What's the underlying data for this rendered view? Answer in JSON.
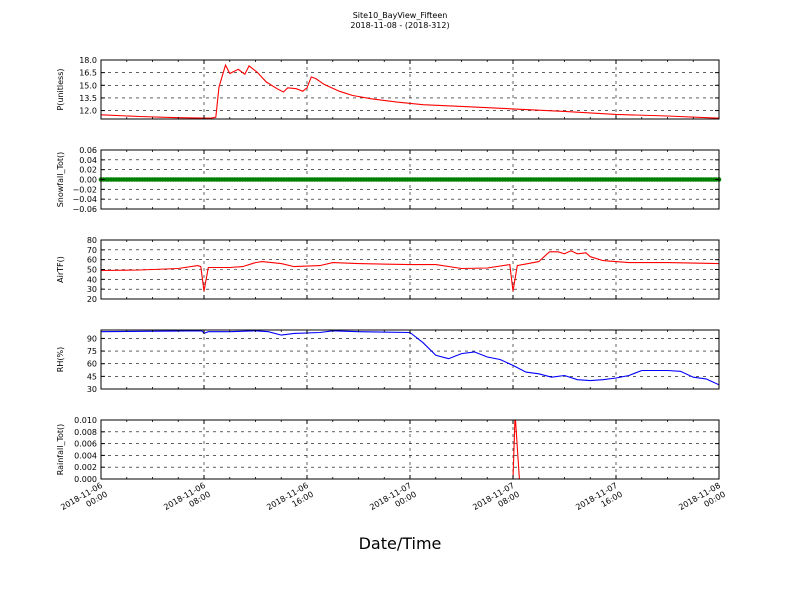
{
  "figure": {
    "title_line1": "Site10_BayView_Fifteen",
    "title_line2": "2018-11-08 - (2018-312)",
    "xlabel": "Date/Time"
  },
  "chart_data": {
    "type": "line",
    "x_range": [
      "2018-11-06 00:00",
      "2018-11-08 00:00"
    ],
    "x_ticks": [
      {
        "value": "2018-11-06 00:00",
        "line1": "2018-11-06",
        "line2": "00:00"
      },
      {
        "value": "2018-11-06 08:00",
        "line1": "2018-11-06",
        "line2": "08:00"
      },
      {
        "value": "2018-11-06 16:00",
        "line1": "2018-11-06",
        "line2": "16:00"
      },
      {
        "value": "2018-11-07 00:00",
        "line1": "2018-11-07",
        "line2": "00:00"
      },
      {
        "value": "2018-11-07 08:00",
        "line1": "2018-11-07",
        "line2": "08:00"
      },
      {
        "value": "2018-11-07 16:00",
        "line1": "2018-11-07",
        "line2": "16:00"
      },
      {
        "value": "2018-11-08 00:00",
        "line1": "2018-11-08",
        "line2": "00:00"
      }
    ],
    "grid": true,
    "panels": [
      {
        "ylabel": "P(unitless)",
        "color": "#ff0000",
        "ylim": [
          11.0,
          18.0
        ],
        "yticks": [
          12.0,
          13.5,
          15.0,
          16.5,
          18.0
        ],
        "ytick_labels": [
          "12.0",
          "13.5",
          "15.0",
          "16.5",
          "18.0"
        ],
        "points": [
          [
            "2018-11-06 00:00",
            11.5
          ],
          [
            "2018-11-06 03:00",
            11.3
          ],
          [
            "2018-11-06 06:00",
            11.15
          ],
          [
            "2018-11-06 08:30",
            11.1
          ],
          [
            "2018-11-06 08:55",
            11.2
          ],
          [
            "2018-11-06 09:10",
            14.8
          ],
          [
            "2018-11-06 09:40",
            17.4
          ],
          [
            "2018-11-06 10:00",
            16.4
          ],
          [
            "2018-11-06 10:40",
            16.9
          ],
          [
            "2018-11-06 11:10",
            16.3
          ],
          [
            "2018-11-06 11:30",
            17.3
          ],
          [
            "2018-11-06 12:10",
            16.5
          ],
          [
            "2018-11-06 12:50",
            15.4
          ],
          [
            "2018-11-06 13:40",
            14.6
          ],
          [
            "2018-11-06 14:10",
            14.2
          ],
          [
            "2018-11-06 14:30",
            14.7
          ],
          [
            "2018-11-06 15:10",
            14.6
          ],
          [
            "2018-11-06 15:40",
            14.3
          ],
          [
            "2018-11-06 16:00",
            14.7
          ],
          [
            "2018-11-06 16:20",
            16.0
          ],
          [
            "2018-11-06 16:40",
            15.8
          ],
          [
            "2018-11-06 17:20",
            15.1
          ],
          [
            "2018-11-06 18:30",
            14.3
          ],
          [
            "2018-11-06 19:30",
            13.8
          ],
          [
            "2018-11-06 21:00",
            13.4
          ],
          [
            "2018-11-06 23:00",
            13.0
          ],
          [
            "2018-11-07 01:00",
            12.7
          ],
          [
            "2018-11-07 04:00",
            12.5
          ],
          [
            "2018-11-07 08:00",
            12.2
          ],
          [
            "2018-11-07 12:00",
            11.9
          ],
          [
            "2018-11-07 16:00",
            11.55
          ],
          [
            "2018-11-07 20:00",
            11.35
          ],
          [
            "2018-11-08 00:00",
            11.1
          ]
        ]
      },
      {
        "ylabel": "Snowfall_Tot()",
        "color": "#008000",
        "ylim": [
          -0.06,
          0.06
        ],
        "yticks": [
          -0.06,
          -0.04,
          -0.02,
          0.0,
          0.02,
          0.04,
          0.06
        ],
        "ytick_labels": [
          "−0.06",
          "−0.04",
          "−0.02",
          "0.00",
          "0.02",
          "0.04",
          "0.06"
        ],
        "markers": true,
        "points": [
          [
            "2018-11-06 00:00",
            0.0
          ],
          [
            "2018-11-08 00:00",
            0.0
          ]
        ]
      },
      {
        "ylabel": "AirTF()",
        "color": "#ff0000",
        "ylim": [
          20,
          80
        ],
        "yticks": [
          20,
          30,
          40,
          50,
          60,
          70,
          80
        ],
        "ytick_labels": [
          "20",
          "30",
          "40",
          "50",
          "60",
          "70",
          "80"
        ],
        "points": [
          [
            "2018-11-06 00:00",
            49
          ],
          [
            "2018-11-06 03:00",
            49.5
          ],
          [
            "2018-11-06 06:00",
            51
          ],
          [
            "2018-11-06 07:30",
            54
          ],
          [
            "2018-11-06 07:45",
            53
          ],
          [
            "2018-11-06 08:00",
            28
          ],
          [
            "2018-11-06 08:20",
            52
          ],
          [
            "2018-11-06 10:00",
            52
          ],
          [
            "2018-11-06 11:00",
            53
          ],
          [
            "2018-11-06 12:00",
            57
          ],
          [
            "2018-11-06 12:30",
            58
          ],
          [
            "2018-11-06 14:00",
            56
          ],
          [
            "2018-11-06 15:00",
            53
          ],
          [
            "2018-11-06 17:00",
            54
          ],
          [
            "2018-11-06 18:00",
            57
          ],
          [
            "2018-11-06 20:00",
            56
          ],
          [
            "2018-11-07 00:00",
            55
          ],
          [
            "2018-11-07 02:00",
            55
          ],
          [
            "2018-11-07 04:00",
            51
          ],
          [
            "2018-11-07 06:00",
            51.5
          ],
          [
            "2018-11-07 07:45",
            55
          ],
          [
            "2018-11-07 08:00",
            28
          ],
          [
            "2018-11-07 08:20",
            54
          ],
          [
            "2018-11-07 10:00",
            58
          ],
          [
            "2018-11-07 10:30",
            64
          ],
          [
            "2018-11-07 10:50",
            68
          ],
          [
            "2018-11-07 11:30",
            68
          ],
          [
            "2018-11-07 12:00",
            66
          ],
          [
            "2018-11-07 12:30",
            69
          ],
          [
            "2018-11-07 13:00",
            66
          ],
          [
            "2018-11-07 13:40",
            67
          ],
          [
            "2018-11-07 14:00",
            63
          ],
          [
            "2018-11-07 15:00",
            59
          ],
          [
            "2018-11-07 17:00",
            57
          ],
          [
            "2018-11-07 20:00",
            57
          ],
          [
            "2018-11-08 00:00",
            56
          ]
        ]
      },
      {
        "ylabel": "RH(%)",
        "color": "#0000ff",
        "ylim": [
          30,
          100
        ],
        "yticks": [
          30,
          45,
          60,
          75,
          90
        ],
        "ytick_labels": [
          "30",
          "45",
          "60",
          "75",
          "90"
        ],
        "points": [
          [
            "2018-11-06 00:00",
            98
          ],
          [
            "2018-11-06 07:50",
            99
          ],
          [
            "2018-11-06 08:00",
            96
          ],
          [
            "2018-11-06 08:20",
            98
          ],
          [
            "2018-11-06 10:00",
            98
          ],
          [
            "2018-11-06 12:00",
            99
          ],
          [
            "2018-11-06 13:00",
            98
          ],
          [
            "2018-11-06 14:00",
            94
          ],
          [
            "2018-11-06 15:00",
            96
          ],
          [
            "2018-11-06 17:00",
            97
          ],
          [
            "2018-11-06 18:00",
            99
          ],
          [
            "2018-11-06 20:00",
            98
          ],
          [
            "2018-11-07 00:00",
            97
          ],
          [
            "2018-11-07 01:00",
            85
          ],
          [
            "2018-11-07 02:00",
            70
          ],
          [
            "2018-11-07 03:00",
            66
          ],
          [
            "2018-11-07 04:00",
            72
          ],
          [
            "2018-11-07 05:00",
            74
          ],
          [
            "2018-11-07 06:00",
            68
          ],
          [
            "2018-11-07 07:00",
            65
          ],
          [
            "2018-11-07 08:00",
            58
          ],
          [
            "2018-11-07 09:00",
            50
          ],
          [
            "2018-11-07 10:00",
            48
          ],
          [
            "2018-11-07 11:00",
            44
          ],
          [
            "2018-11-07 12:00",
            46
          ],
          [
            "2018-11-07 13:00",
            41
          ],
          [
            "2018-11-07 14:00",
            40
          ],
          [
            "2018-11-07 15:00",
            41
          ],
          [
            "2018-11-07 16:00",
            43
          ],
          [
            "2018-11-07 17:00",
            46
          ],
          [
            "2018-11-07 18:00",
            52
          ],
          [
            "2018-11-07 20:00",
            52
          ],
          [
            "2018-11-07 21:00",
            51
          ],
          [
            "2018-11-07 22:00",
            44
          ],
          [
            "2018-11-07 23:00",
            42
          ],
          [
            "2018-11-08 00:00",
            35
          ]
        ]
      },
      {
        "ylabel": "Rainfall_Tot()",
        "color": "#ff0000",
        "ylim": [
          0.0,
          0.01
        ],
        "yticks": [
          0.0,
          0.002,
          0.004,
          0.006,
          0.008,
          0.01
        ],
        "ytick_labels": [
          "0.000",
          "0.002",
          "0.004",
          "0.006",
          "0.008",
          "0.010"
        ],
        "points": [
          [
            "2018-11-06 00:00",
            0.0
          ],
          [
            "2018-11-07 08:00",
            0.0
          ],
          [
            "2018-11-07 08:10",
            0.011
          ],
          [
            "2018-11-07 08:30",
            0.0
          ],
          [
            "2018-11-08 00:00",
            0.0
          ]
        ]
      }
    ]
  }
}
